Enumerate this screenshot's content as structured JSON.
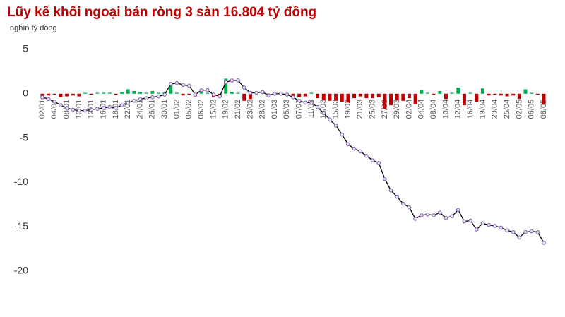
{
  "chart_data": {
    "type": "combo",
    "title": "Lũy kế khối ngoại bán ròng 3 sàn 16.804 tỷ đồng",
    "subtitle": "nghìn tỷ đồng",
    "categories": [
      "02/01",
      null,
      "04/01",
      null,
      "08/01",
      null,
      "10/01",
      null,
      "12/01",
      null,
      "16/01",
      null,
      "18/01",
      null,
      "22/01",
      null,
      "24/01",
      null,
      "26/01",
      null,
      "30/01",
      null,
      "01/02",
      null,
      "05/02",
      null,
      "06/02",
      null,
      "15/02",
      null,
      "19/02",
      null,
      "21/02",
      null,
      "23/02",
      null,
      "28/02",
      null,
      "01/03",
      null,
      "05/03",
      null,
      "07/03",
      null,
      "11/03",
      null,
      "13/03",
      null,
      "15/03",
      null,
      "19/03",
      null,
      "21/03",
      null,
      "25/03",
      null,
      "27/03",
      null,
      "29/03",
      null,
      "02/04",
      null,
      "04/04",
      null,
      "08/04",
      null,
      "10/04",
      null,
      "12/04",
      null,
      "16/04",
      null,
      "19/04",
      null,
      "23/04",
      null,
      "25/04",
      null,
      "02/05",
      null,
      "06/05",
      null,
      "08/05"
    ],
    "series": [
      {
        "type": "bar",
        "color": "#00b050",
        "negative_color": "#c00000",
        "values": [
          -0.3,
          -0.2,
          -0.1,
          -0.4,
          -0.3,
          -0.2,
          -0.3,
          0.1,
          -0.1,
          0.1,
          0.1,
          0.1,
          -0.1,
          0.2,
          0.5,
          0.3,
          0.2,
          0.1,
          0.3,
          0.1,
          0.2,
          1.1,
          0.1,
          -0.2,
          -0.1,
          -0.3,
          0.3,
          0.1,
          -0.4,
          -0.3,
          1.7,
          0.2,
          0.1,
          -0.8,
          -0.6,
          0.1,
          0.1,
          -0.3,
          0.1,
          -0.1,
          -0.1,
          -0.3,
          -0.4,
          -0.3,
          0.1,
          -0.5,
          -0.7,
          -0.8,
          -0.8,
          -0.9,
          -1.0,
          -0.5,
          -0.3,
          -0.5,
          -0.5,
          -0.4,
          -1.7,
          -1.3,
          -0.7,
          -0.8,
          -0.5,
          -1.2,
          0.4,
          0.1,
          -0.1,
          0.3,
          -0.6,
          0.1,
          0.7,
          -1.3,
          0.1,
          -0.9,
          0.6,
          -0.2,
          -0.1,
          -0.2,
          -0.3,
          -0.2,
          -0.6,
          0.5,
          0.1,
          -0.1,
          -1.2
        ]
      },
      {
        "type": "line",
        "color": "#000000",
        "marker_color": "#7b5ea7",
        "values": [
          -0.4,
          -0.6,
          -0.9,
          -1.3,
          -1.6,
          -1.8,
          -1.9,
          -1.9,
          -1.8,
          -1.7,
          -1.6,
          -1.5,
          -1.6,
          -1.3,
          -1.0,
          -0.8,
          -0.6,
          -0.5,
          -0.4,
          -0.3,
          -0.1,
          1.1,
          1.2,
          1.0,
          0.9,
          -0.1,
          0.4,
          0.4,
          -0.1,
          -0.3,
          1.3,
          1.5,
          1.5,
          0.7,
          0.1,
          0.1,
          0.2,
          -0.2,
          0.0,
          0.0,
          -0.1,
          -0.4,
          -0.8,
          -1.0,
          -1.0,
          -1.5,
          -2.2,
          -2.9,
          -3.6,
          -4.6,
          -5.7,
          -6.2,
          -6.5,
          -7.0,
          -7.5,
          -7.8,
          -9.6,
          -10.9,
          -11.6,
          -12.4,
          -12.8,
          -14.1,
          -13.7,
          -13.6,
          -13.7,
          -13.4,
          -14.0,
          -13.8,
          -13.1,
          -14.4,
          -14.3,
          -15.3,
          -14.6,
          -14.8,
          -14.9,
          -15.1,
          -15.4,
          -15.6,
          -16.2,
          -15.6,
          -15.5,
          -15.6,
          -16.804
        ]
      }
    ],
    "ylim": [
      -21,
      6
    ],
    "yticks": [
      5,
      0,
      -5,
      -10,
      -15,
      -20
    ],
    "grid": false
  }
}
